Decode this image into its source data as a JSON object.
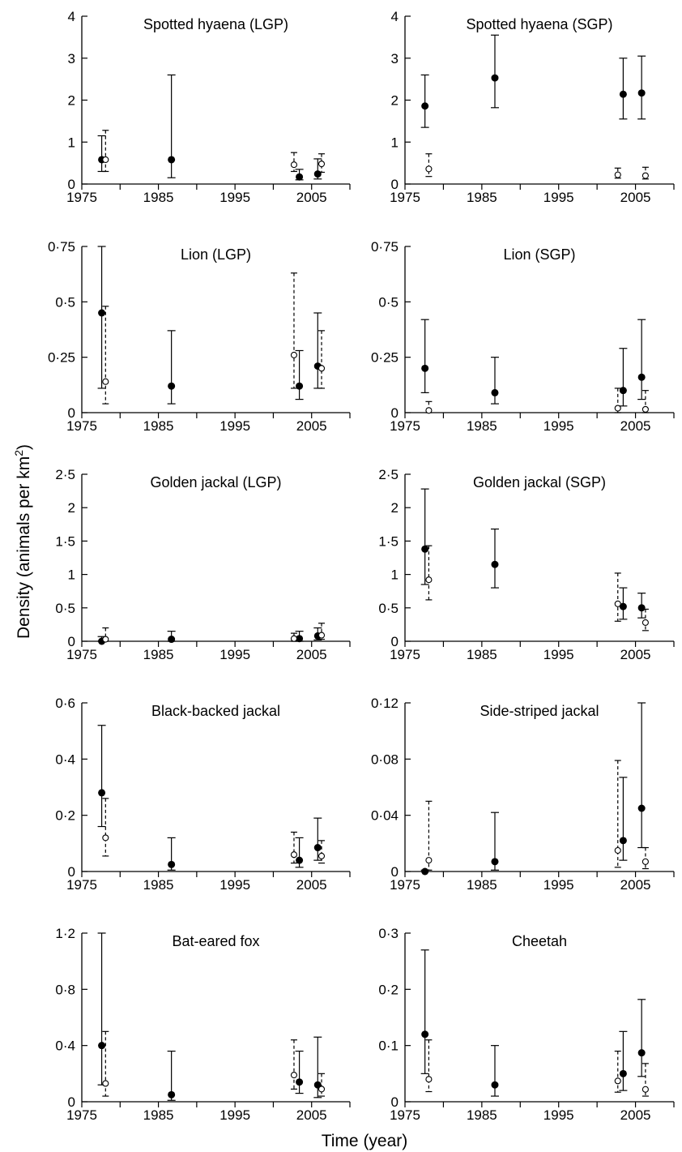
{
  "figure": {
    "ylabel": "Density (animals per km",
    "ylabel_sup": "2",
    "ylabel_close": ")",
    "xlabel": "Time (year)"
  },
  "chart_data": [
    {
      "type": "scatter",
      "title": "Spotted hyaena (LGP)",
      "ylim": [
        0,
        4
      ],
      "yticks": [
        "0",
        "1",
        "2",
        "3",
        "4"
      ],
      "xlim": [
        1975,
        2010
      ],
      "xticks": [
        "1975",
        "1985",
        "1995",
        "2005"
      ],
      "series": [
        {
          "style": "filled",
          "points": [
            {
              "x": 1977.6,
              "y": 0.58,
              "lo": 0.3,
              "hi": 1.15
            },
            {
              "x": 1986.7,
              "y": 0.58,
              "lo": 0.15,
              "hi": 2.6
            },
            {
              "x": 2003.4,
              "y": 0.17,
              "lo": 0.1,
              "hi": 0.35
            },
            {
              "x": 2005.8,
              "y": 0.24,
              "lo": 0.12,
              "hi": 0.6
            }
          ]
        },
        {
          "style": "open",
          "points": [
            {
              "x": 1978.1,
              "y": 0.58,
              "lo": 0.3,
              "hi": 1.28
            },
            {
              "x": 2002.7,
              "y": 0.46,
              "lo": 0.3,
              "hi": 0.75
            },
            {
              "x": 2006.3,
              "y": 0.48,
              "lo": 0.28,
              "hi": 0.72
            }
          ]
        }
      ]
    },
    {
      "type": "scatter",
      "title": "Spotted hyaena (SGP)",
      "ylim": [
        0,
        4
      ],
      "yticks": [
        "0",
        "1",
        "2",
        "3",
        "4"
      ],
      "xlim": [
        1975,
        2010
      ],
      "xticks": [
        "1975",
        "1985",
        "1995",
        "2005"
      ],
      "series": [
        {
          "style": "filled",
          "points": [
            {
              "x": 1977.6,
              "y": 1.86,
              "lo": 1.35,
              "hi": 2.6
            },
            {
              "x": 1986.7,
              "y": 2.53,
              "lo": 1.82,
              "hi": 3.55
            },
            {
              "x": 2003.4,
              "y": 2.14,
              "lo": 1.55,
              "hi": 3.0
            },
            {
              "x": 2005.8,
              "y": 2.17,
              "lo": 1.55,
              "hi": 3.05
            }
          ]
        },
        {
          "style": "open",
          "points": [
            {
              "x": 1978.1,
              "y": 0.36,
              "lo": 0.18,
              "hi": 0.72
            },
            {
              "x": 2002.7,
              "y": 0.22,
              "lo": 0.14,
              "hi": 0.38
            },
            {
              "x": 2006.3,
              "y": 0.2,
              "lo": 0.12,
              "hi": 0.4
            }
          ]
        }
      ]
    },
    {
      "type": "scatter",
      "title": "Lion (LGP)",
      "ylim": [
        0,
        0.75
      ],
      "yticks": [
        "0",
        "0·25",
        "0·5",
        "0·75"
      ],
      "xlim": [
        1975,
        2010
      ],
      "xticks": [
        "1975",
        "1985",
        "1995",
        "2005"
      ],
      "series": [
        {
          "style": "filled",
          "points": [
            {
              "x": 1977.6,
              "y": 0.45,
              "lo": 0.11,
              "hi": 0.75
            },
            {
              "x": 1986.7,
              "y": 0.12,
              "lo": 0.04,
              "hi": 0.37
            },
            {
              "x": 2003.4,
              "y": 0.12,
              "lo": 0.06,
              "hi": 0.28
            },
            {
              "x": 2005.8,
              "y": 0.21,
              "lo": 0.11,
              "hi": 0.45
            }
          ]
        },
        {
          "style": "open",
          "points": [
            {
              "x": 1978.1,
              "y": 0.14,
              "lo": 0.04,
              "hi": 0.48
            },
            {
              "x": 2002.7,
              "y": 0.26,
              "lo": 0.11,
              "hi": 0.63
            },
            {
              "x": 2006.3,
              "y": 0.2,
              "lo": 0.11,
              "hi": 0.37
            }
          ]
        }
      ]
    },
    {
      "type": "scatter",
      "title": "Lion (SGP)",
      "ylim": [
        0,
        0.75
      ],
      "yticks": [
        "0",
        "0·25",
        "0·5",
        "0·75"
      ],
      "xlim": [
        1975,
        2010
      ],
      "xticks": [
        "1975",
        "1985",
        "1995",
        "2005"
      ],
      "series": [
        {
          "style": "filled",
          "points": [
            {
              "x": 1977.6,
              "y": 0.2,
              "lo": 0.09,
              "hi": 0.42
            },
            {
              "x": 1986.7,
              "y": 0.09,
              "lo": 0.04,
              "hi": 0.25
            },
            {
              "x": 2003.4,
              "y": 0.1,
              "lo": 0.03,
              "hi": 0.29
            },
            {
              "x": 2005.8,
              "y": 0.16,
              "lo": 0.06,
              "hi": 0.42
            }
          ]
        },
        {
          "style": "open",
          "points": [
            {
              "x": 1978.1,
              "y": 0.01,
              "lo": 0.0,
              "hi": 0.05
            },
            {
              "x": 2002.7,
              "y": 0.02,
              "lo": 0.0,
              "hi": 0.11
            },
            {
              "x": 2006.3,
              "y": 0.015,
              "lo": 0.0,
              "hi": 0.1
            }
          ]
        }
      ]
    },
    {
      "type": "scatter",
      "title": "Golden jackal (LGP)",
      "ylim": [
        0,
        2.5
      ],
      "yticks": [
        "0",
        "0·5",
        "1",
        "1·5",
        "2",
        "2·5"
      ],
      "xlim": [
        1975,
        2010
      ],
      "xticks": [
        "1975",
        "1985",
        "1995",
        "2005"
      ],
      "series": [
        {
          "style": "filled",
          "points": [
            {
              "x": 1977.6,
              "y": 0.0,
              "lo": 0.0,
              "hi": 0.07
            },
            {
              "x": 1986.7,
              "y": 0.03,
              "lo": 0.0,
              "hi": 0.15
            },
            {
              "x": 2003.4,
              "y": 0.04,
              "lo": 0.0,
              "hi": 0.15
            },
            {
              "x": 2005.8,
              "y": 0.08,
              "lo": 0.02,
              "hi": 0.2
            }
          ]
        },
        {
          "style": "open",
          "points": [
            {
              "x": 1978.1,
              "y": 0.03,
              "lo": 0.0,
              "hi": 0.2
            },
            {
              "x": 2002.7,
              "y": 0.04,
              "lo": 0.0,
              "hi": 0.12
            },
            {
              "x": 2006.3,
              "y": 0.09,
              "lo": 0.03,
              "hi": 0.27
            }
          ]
        }
      ]
    },
    {
      "type": "scatter",
      "title": "Golden jackal (SGP)",
      "ylim": [
        0,
        2.5
      ],
      "yticks": [
        "0",
        "0·5",
        "1",
        "1·5",
        "2",
        "2·5"
      ],
      "xlim": [
        1975,
        2010
      ],
      "xticks": [
        "1975",
        "1985",
        "1995",
        "2005"
      ],
      "series": [
        {
          "style": "filled",
          "points": [
            {
              "x": 1977.6,
              "y": 1.38,
              "lo": 0.85,
              "hi": 2.28
            },
            {
              "x": 1986.7,
              "y": 1.15,
              "lo": 0.8,
              "hi": 1.68
            },
            {
              "x": 2003.4,
              "y": 0.52,
              "lo": 0.33,
              "hi": 0.8
            },
            {
              "x": 2005.8,
              "y": 0.5,
              "lo": 0.35,
              "hi": 0.72
            }
          ]
        },
        {
          "style": "open",
          "points": [
            {
              "x": 1978.1,
              "y": 0.92,
              "lo": 0.62,
              "hi": 1.43
            },
            {
              "x": 2002.7,
              "y": 0.56,
              "lo": 0.3,
              "hi": 1.02
            },
            {
              "x": 2006.3,
              "y": 0.28,
              "lo": 0.16,
              "hi": 0.48
            }
          ]
        }
      ]
    },
    {
      "type": "scatter",
      "title": "Black-backed jackal",
      "ylim": [
        0,
        0.6
      ],
      "yticks": [
        "0",
        "0·2",
        "0·4",
        "0·6"
      ],
      "xlim": [
        1975,
        2010
      ],
      "xticks": [
        "1975",
        "1985",
        "1995",
        "2005"
      ],
      "series": [
        {
          "style": "filled",
          "points": [
            {
              "x": 1977.6,
              "y": 0.28,
              "lo": 0.16,
              "hi": 0.52
            },
            {
              "x": 1986.7,
              "y": 0.025,
              "lo": 0.005,
              "hi": 0.12
            },
            {
              "x": 2003.4,
              "y": 0.04,
              "lo": 0.015,
              "hi": 0.12
            },
            {
              "x": 2005.8,
              "y": 0.085,
              "lo": 0.04,
              "hi": 0.19
            }
          ]
        },
        {
          "style": "open",
          "points": [
            {
              "x": 1978.1,
              "y": 0.12,
              "lo": 0.055,
              "hi": 0.26
            },
            {
              "x": 2002.7,
              "y": 0.06,
              "lo": 0.03,
              "hi": 0.14
            },
            {
              "x": 2006.3,
              "y": 0.055,
              "lo": 0.03,
              "hi": 0.11
            }
          ]
        }
      ]
    },
    {
      "type": "scatter",
      "title": "Side-striped jackal",
      "ylim": [
        0,
        0.12
      ],
      "yticks": [
        "0",
        "0·04",
        "0·08",
        "0·12"
      ],
      "xlim": [
        1975,
        2010
      ],
      "xticks": [
        "1975",
        "1985",
        "1995",
        "2005"
      ],
      "series": [
        {
          "style": "filled",
          "points": [
            {
              "x": 1977.6,
              "y": 0.0,
              "lo": 0.0,
              "hi": 0.001
            },
            {
              "x": 1986.7,
              "y": 0.007,
              "lo": 0.001,
              "hi": 0.042
            },
            {
              "x": 2003.4,
              "y": 0.022,
              "lo": 0.008,
              "hi": 0.067
            },
            {
              "x": 2005.8,
              "y": 0.045,
              "lo": 0.017,
              "hi": 0.12
            }
          ]
        },
        {
          "style": "open",
          "points": [
            {
              "x": 1978.1,
              "y": 0.008,
              "lo": 0.001,
              "hi": 0.05
            },
            {
              "x": 2002.7,
              "y": 0.015,
              "lo": 0.003,
              "hi": 0.079
            },
            {
              "x": 2006.3,
              "y": 0.007,
              "lo": 0.002,
              "hi": 0.017
            }
          ]
        }
      ]
    },
    {
      "type": "scatter",
      "title": "Bat-eared fox",
      "ylim": [
        0,
        1.2
      ],
      "yticks": [
        "0",
        "0·4",
        "0·8",
        "1·2"
      ],
      "xlim": [
        1975,
        2010
      ],
      "xticks": [
        "1975",
        "1985",
        "1995",
        "2005"
      ],
      "series": [
        {
          "style": "filled",
          "points": [
            {
              "x": 1977.6,
              "y": 0.4,
              "lo": 0.12,
              "hi": 1.2
            },
            {
              "x": 1986.7,
              "y": 0.05,
              "lo": 0.01,
              "hi": 0.36
            },
            {
              "x": 2003.4,
              "y": 0.14,
              "lo": 0.06,
              "hi": 0.36
            },
            {
              "x": 2005.8,
              "y": 0.12,
              "lo": 0.03,
              "hi": 0.46
            }
          ]
        },
        {
          "style": "open",
          "points": [
            {
              "x": 1978.1,
              "y": 0.13,
              "lo": 0.04,
              "hi": 0.5
            },
            {
              "x": 2002.7,
              "y": 0.19,
              "lo": 0.09,
              "hi": 0.44
            },
            {
              "x": 2006.3,
              "y": 0.09,
              "lo": 0.04,
              "hi": 0.2
            }
          ]
        }
      ]
    },
    {
      "type": "scatter",
      "title": "Cheetah",
      "ylim": [
        0,
        0.3
      ],
      "yticks": [
        "0",
        "0·1",
        "0·2",
        "0·3"
      ],
      "xlim": [
        1975,
        2010
      ],
      "xticks": [
        "1975",
        "1985",
        "1995",
        "2005"
      ],
      "series": [
        {
          "style": "filled",
          "points": [
            {
              "x": 1977.6,
              "y": 0.12,
              "lo": 0.05,
              "hi": 0.27
            },
            {
              "x": 1986.7,
              "y": 0.03,
              "lo": 0.01,
              "hi": 0.1
            },
            {
              "x": 2003.4,
              "y": 0.05,
              "lo": 0.02,
              "hi": 0.125
            },
            {
              "x": 2005.8,
              "y": 0.087,
              "lo": 0.045,
              "hi": 0.182
            }
          ]
        },
        {
          "style": "open",
          "points": [
            {
              "x": 1978.1,
              "y": 0.04,
              "lo": 0.018,
              "hi": 0.11
            },
            {
              "x": 2002.7,
              "y": 0.037,
              "lo": 0.017,
              "hi": 0.09
            },
            {
              "x": 2006.3,
              "y": 0.022,
              "lo": 0.01,
              "hi": 0.068
            }
          ]
        }
      ]
    }
  ]
}
